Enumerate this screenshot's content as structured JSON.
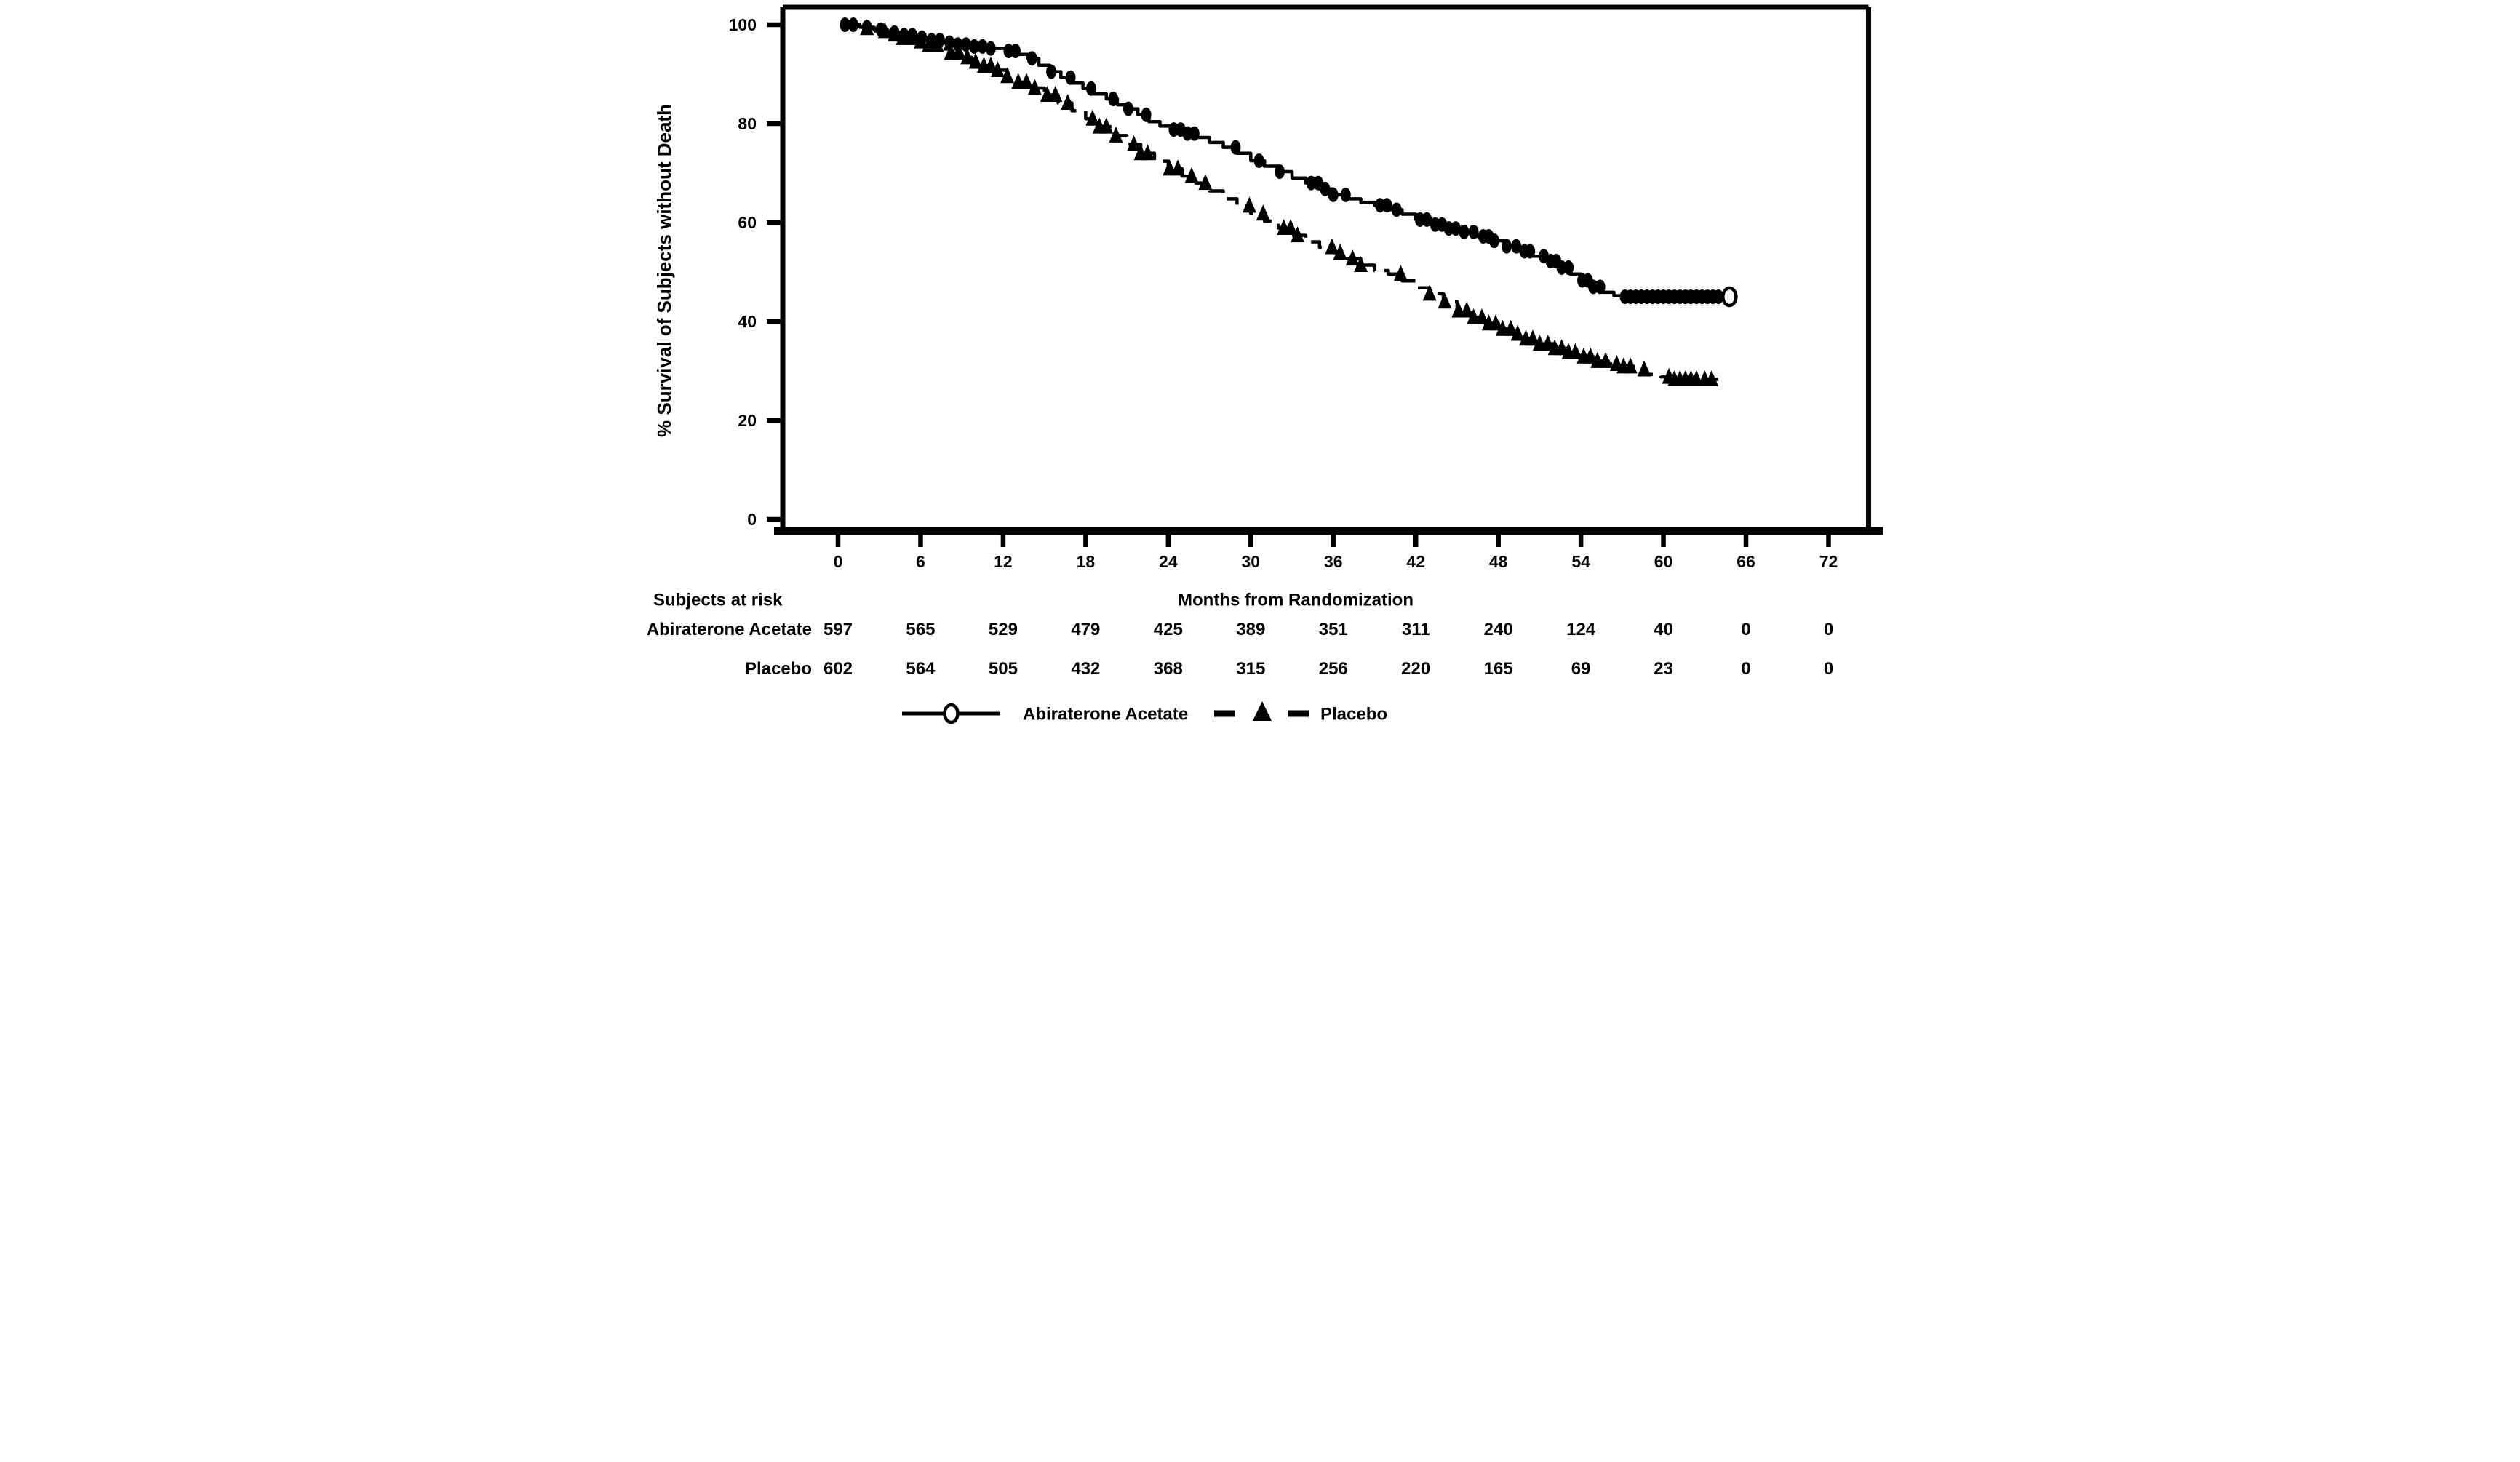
{
  "colors": {
    "ink": "#000000",
    "background": "#ffffff"
  },
  "chart_data": {
    "type": "line",
    "subtype": "kaplan-meier-step",
    "title": "",
    "xlabel": "Months from Randomization",
    "ylabel": "% Survival of Subjects without Death",
    "xlim": [
      0,
      72
    ],
    "ylim": [
      0,
      100
    ],
    "x_ticks": [
      0,
      6,
      12,
      18,
      24,
      30,
      36,
      42,
      48,
      54,
      60,
      66,
      72
    ],
    "y_ticks": [
      0,
      20,
      40,
      60,
      80,
      100
    ],
    "grid": false,
    "legend_position": "bottom",
    "series": [
      {
        "name": "Abiraterone Acetate",
        "line_style": "solid",
        "marker": "filled-ellipse",
        "end_marker": "open-circle",
        "end_month": 64.8,
        "steps": [
          [
            0.2,
            100
          ],
          [
            1.6,
            99.5
          ],
          [
            2.6,
            99
          ],
          [
            3.6,
            98.4
          ],
          [
            4.6,
            97.9
          ],
          [
            5.6,
            97.4
          ],
          [
            6.6,
            96.9
          ],
          [
            7.6,
            96.4
          ],
          [
            8.6,
            96
          ],
          [
            9.6,
            95.6
          ],
          [
            11,
            95.2
          ],
          [
            12.2,
            94.7
          ],
          [
            13,
            94
          ],
          [
            13.8,
            93.2
          ],
          [
            14.6,
            91.8
          ],
          [
            15.4,
            90.5
          ],
          [
            16.2,
            89.3
          ],
          [
            17,
            88.2
          ],
          [
            17.8,
            87.1
          ],
          [
            18.6,
            86
          ],
          [
            19.5,
            85
          ],
          [
            20.3,
            83.8
          ],
          [
            21,
            83
          ],
          [
            21.8,
            81.8
          ],
          [
            22.6,
            80.4
          ],
          [
            23.4,
            79.5
          ],
          [
            24.2,
            78.8
          ],
          [
            25,
            78
          ],
          [
            26,
            77.2
          ],
          [
            27,
            76.2
          ],
          [
            28,
            75.2
          ],
          [
            29,
            74
          ],
          [
            30,
            72.5
          ],
          [
            31,
            71.4
          ],
          [
            32,
            70.3
          ],
          [
            33,
            69
          ],
          [
            34,
            68
          ],
          [
            35,
            66.8
          ],
          [
            36,
            65.6
          ],
          [
            37,
            64.8
          ],
          [
            38,
            64.1
          ],
          [
            39,
            63.5
          ],
          [
            40,
            62.6
          ],
          [
            41,
            61.7
          ],
          [
            42,
            60.6
          ],
          [
            43,
            59.6
          ],
          [
            44.2,
            58.8
          ],
          [
            45.4,
            58.1
          ],
          [
            46.4,
            57.2
          ],
          [
            47.4,
            56.3
          ],
          [
            48.4,
            55.2
          ],
          [
            49.4,
            54.2
          ],
          [
            50.4,
            53.2
          ],
          [
            51.4,
            52.2
          ],
          [
            52.4,
            50.9
          ],
          [
            53.2,
            49.6
          ],
          [
            54,
            48.3
          ],
          [
            54.8,
            47
          ],
          [
            55.6,
            45.9
          ],
          [
            56.4,
            45.2
          ],
          [
            57.2,
            45
          ],
          [
            64.8,
            45
          ]
        ],
        "censor_months": [
          0.5,
          1.1,
          2.1,
          3.1,
          4.1,
          4.8,
          5.4,
          6.1,
          6.8,
          7.4,
          8.1,
          8.7,
          9.3,
          9.9,
          10.5,
          11.1,
          12.4,
          12.9,
          14.1,
          15.5,
          16.9,
          18.4,
          20.0,
          21.1,
          22.4,
          24.4,
          24.9,
          25.4,
          25.9,
          28.9,
          30.6,
          32.1,
          34.4,
          34.9,
          35.4,
          36.0,
          36.9,
          39.4,
          39.9,
          40.6,
          42.3,
          42.8,
          43.4,
          43.9,
          44.4,
          44.9,
          45.5,
          46.2,
          46.9,
          47.3,
          47.7,
          48.6,
          49.3,
          49.9,
          50.3,
          51.3,
          51.8,
          52.2,
          52.6,
          53.1,
          54.1,
          54.5,
          54.9,
          55.4,
          57.2,
          57.6,
          58.0,
          58.4,
          58.8,
          59.2,
          59.6,
          60.0,
          60.4,
          60.8,
          61.2,
          61.6,
          62.0,
          62.4,
          62.8,
          63.2,
          63.6,
          64.0
        ]
      },
      {
        "name": "Placebo",
        "line_style": "dashed",
        "marker": "filled-triangle",
        "end_marker": "none",
        "end_month": 64.0,
        "steps": [
          [
            0.2,
            100
          ],
          [
            1.7,
            99.3
          ],
          [
            2.7,
            98.7
          ],
          [
            3.7,
            98
          ],
          [
            4.7,
            97.3
          ],
          [
            5.7,
            96.6
          ],
          [
            6.5,
            95.9
          ],
          [
            7.3,
            95.1
          ],
          [
            8.1,
            94.3
          ],
          [
            8.9,
            93.4
          ],
          [
            9.7,
            92.5
          ],
          [
            10.5,
            91.7
          ],
          [
            11.5,
            90.8
          ],
          [
            12.3,
            89.6
          ],
          [
            13.1,
            88.4
          ],
          [
            14,
            87.2
          ],
          [
            15,
            85.8
          ],
          [
            16,
            84.2
          ],
          [
            17,
            82.6
          ],
          [
            18,
            81
          ],
          [
            19,
            79.4
          ],
          [
            20,
            77.6
          ],
          [
            21,
            75.8
          ],
          [
            22,
            74
          ],
          [
            23,
            72.4
          ],
          [
            24,
            70.9
          ],
          [
            25,
            69.4
          ],
          [
            26,
            68
          ],
          [
            27,
            66.4
          ],
          [
            28,
            64.8
          ],
          [
            29,
            63.4
          ],
          [
            30,
            61.8
          ],
          [
            31,
            60.3
          ],
          [
            32,
            58.9
          ],
          [
            33,
            57.4
          ],
          [
            34,
            56.1
          ],
          [
            35,
            55
          ],
          [
            36,
            53.9
          ],
          [
            37,
            52.7
          ],
          [
            38,
            51.4
          ],
          [
            39,
            50.3
          ],
          [
            40,
            49.6
          ],
          [
            41,
            48.2
          ],
          [
            42,
            46.8
          ],
          [
            43,
            45.6
          ],
          [
            44,
            44
          ],
          [
            45,
            42.2
          ],
          [
            46,
            40.8
          ],
          [
            47,
            39.6
          ],
          [
            48,
            38.5
          ],
          [
            49,
            37.5
          ],
          [
            50,
            36.5
          ],
          [
            51,
            35.5
          ],
          [
            52,
            34.6
          ],
          [
            53,
            33.8
          ],
          [
            54,
            32.9
          ],
          [
            55,
            32
          ],
          [
            56,
            31.4
          ],
          [
            57,
            30.9
          ],
          [
            58,
            30.3
          ],
          [
            58.8,
            29.3
          ],
          [
            59.8,
            28.8
          ],
          [
            60.8,
            28.3
          ],
          [
            64,
            28.3
          ]
        ],
        "censor_months": [
          2.1,
          3.4,
          4.1,
          4.7,
          5.4,
          6.0,
          6.6,
          7.2,
          8.2,
          8.8,
          9.4,
          10.0,
          10.6,
          11.1,
          11.6,
          12.3,
          13.1,
          13.7,
          14.3,
          15.2,
          15.8,
          16.7,
          18.5,
          19.0,
          19.5,
          20.2,
          21.5,
          22.0,
          22.5,
          24.1,
          24.7,
          25.7,
          26.7,
          29.9,
          30.9,
          32.4,
          32.9,
          33.4,
          35.9,
          36.5,
          37.4,
          38.0,
          40.9,
          43.0,
          44.1,
          45.1,
          45.7,
          46.2,
          46.8,
          47.3,
          47.8,
          48.3,
          48.9,
          49.4,
          50.0,
          50.5,
          51.0,
          51.6,
          52.1,
          52.6,
          53.1,
          53.6,
          54.2,
          54.7,
          55.2,
          55.8,
          56.6,
          57.1,
          57.6,
          58.6,
          60.4,
          60.8,
          61.2,
          61.6,
          62.0,
          62.4,
          63.0,
          63.5
        ]
      }
    ],
    "risk_table": {
      "heading": "Subjects at risk",
      "time_points": [
        0,
        6,
        12,
        18,
        24,
        30,
        36,
        42,
        48,
        54,
        60,
        66,
        72
      ],
      "rows": [
        {
          "label": "Abiraterone Acetate",
          "counts": [
            597,
            565,
            529,
            479,
            425,
            389,
            351,
            311,
            240,
            124,
            40,
            0,
            0
          ]
        },
        {
          "label": "Placebo",
          "counts": [
            602,
            564,
            505,
            432,
            368,
            315,
            256,
            220,
            165,
            69,
            23,
            0,
            0
          ]
        }
      ]
    },
    "legend": {
      "items": [
        {
          "label": "Abiraterone Acetate",
          "marker": "open-circle-on-solid-line"
        },
        {
          "label": "Placebo",
          "marker": "filled-triangle-between-dashes"
        }
      ]
    }
  }
}
